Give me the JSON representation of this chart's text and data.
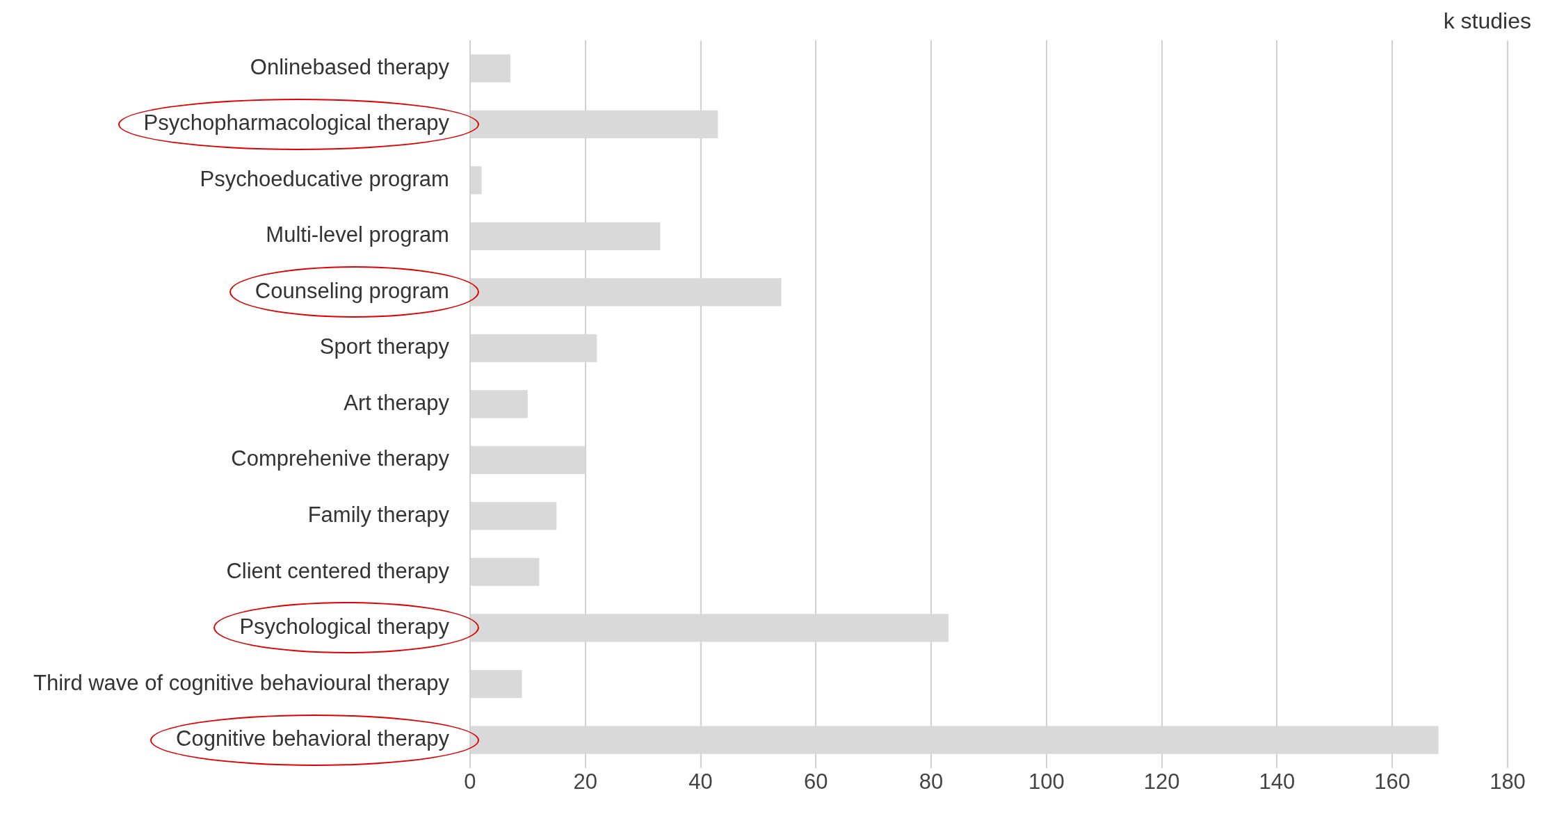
{
  "chart_data": {
    "type": "bar",
    "orientation": "horizontal",
    "xlabel": "k studies",
    "categories": [
      "Onlinebased therapy",
      "Psychopharmacological therapy",
      "Psychoeducative program",
      "Multi-level program",
      "Counseling program",
      "Sport therapy",
      "Art therapy",
      "Comprehenive therapy",
      "Family therapy",
      "Client centered therapy",
      "Psychological therapy",
      "Third wave of cognitive behavioural therapy",
      "Cognitive behavioral therapy"
    ],
    "values": [
      7,
      43,
      2,
      33,
      54,
      22,
      10,
      20,
      15,
      12,
      83,
      9,
      168
    ],
    "color": "#d9d9d9",
    "xlim": [
      0,
      180
    ],
    "xticks": [
      0,
      20,
      40,
      60,
      80,
      100,
      120,
      140,
      160,
      180
    ],
    "grid": "x",
    "legend": false
  }
}
